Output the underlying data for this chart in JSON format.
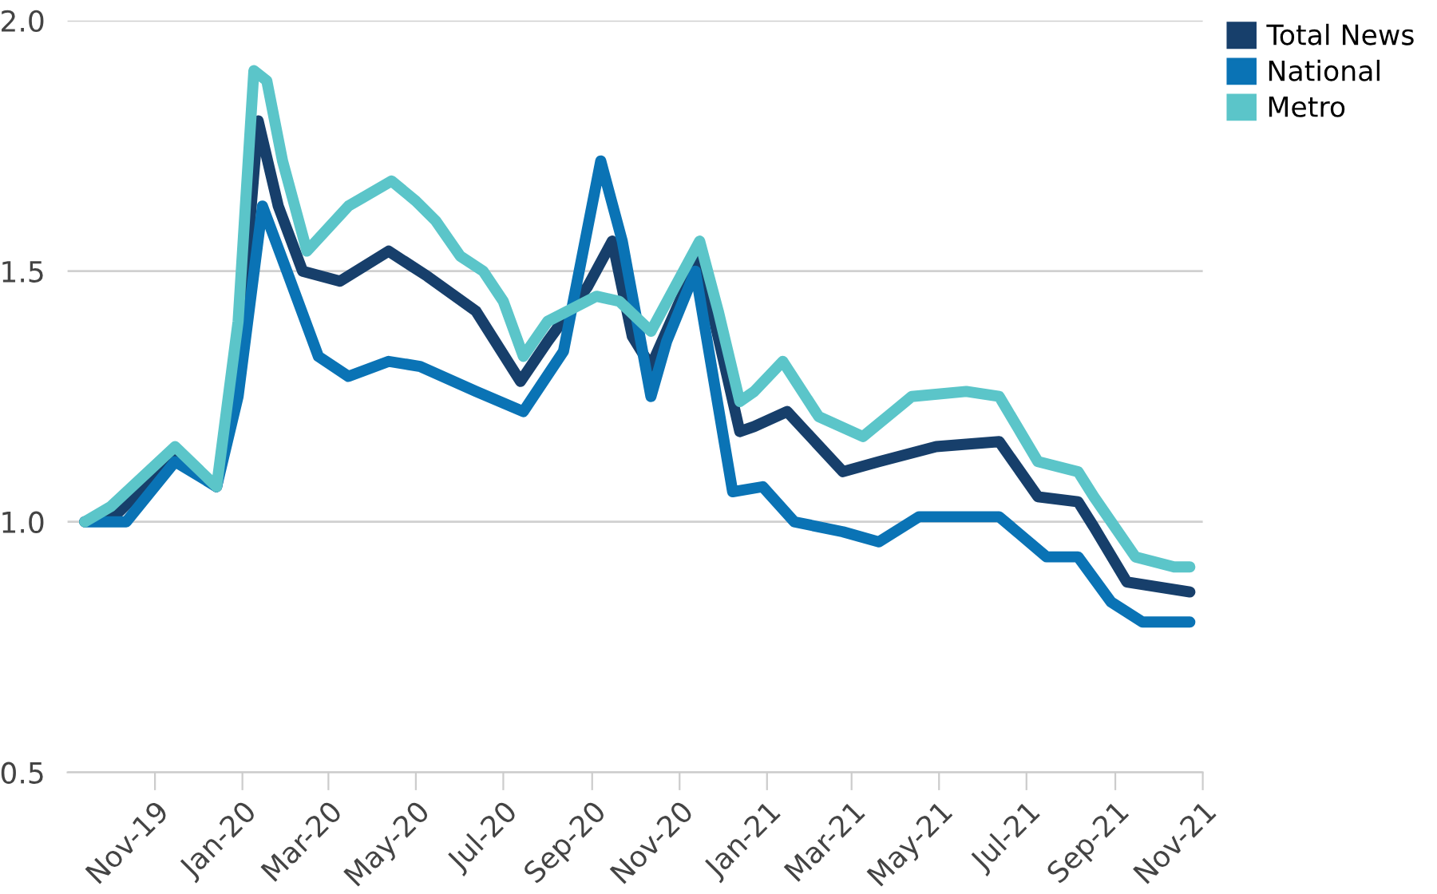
{
  "chart_data": {
    "type": "line",
    "xlim": [
      "2019-09-01",
      "2021-11-01"
    ],
    "xticks": [
      {
        "value": "2019-11-01",
        "label": "Nov-19"
      },
      {
        "value": "2020-01-01",
        "label": "Jan-20"
      },
      {
        "value": "2020-03-01",
        "label": "Mar-20"
      },
      {
        "value": "2020-05-01",
        "label": "May-20"
      },
      {
        "value": "2020-07-01",
        "label": "Jul-20"
      },
      {
        "value": "2020-09-01",
        "label": "Sep-20"
      },
      {
        "value": "2020-11-01",
        "label": "Nov-20"
      },
      {
        "value": "2021-01-01",
        "label": "Jan-21"
      },
      {
        "value": "2021-03-01",
        "label": "Mar-21"
      },
      {
        "value": "2021-05-01",
        "label": "May-21"
      },
      {
        "value": "2021-07-01",
        "label": "Jul-21"
      },
      {
        "value": "2021-09-01",
        "label": "Sep-21"
      },
      {
        "value": "2021-11-01",
        "label": "Nov-21"
      }
    ],
    "ylim": [
      0.5,
      2.0
    ],
    "yticks": [
      {
        "value": 0.5,
        "label": "0.5"
      },
      {
        "value": 1.0,
        "label": "1.0"
      },
      {
        "value": 1.5,
        "label": "1.5"
      },
      {
        "value": 2.0,
        "label": "2.0"
      }
    ],
    "grid": "y",
    "legend": "top right",
    "line_style": "solid",
    "marker": "none",
    "series": [
      {
        "name": "Total News",
        "color": "#173f6b",
        "x": [
          "2019-09-13",
          "2019-10-07",
          "2019-11-15",
          "2019-12-14",
          "2019-12-29",
          "2020-01-12",
          "2020-01-26",
          "2020-02-12",
          "2020-03-09",
          "2020-04-12",
          "2020-05-09",
          "2020-06-12",
          "2020-07-13",
          "2020-08-01",
          "2020-08-29",
          "2020-09-15",
          "2020-09-29",
          "2020-10-12",
          "2020-10-29",
          "2020-11-15",
          "2020-12-13",
          "2020-12-23",
          "2021-01-15",
          "2021-02-23",
          "2021-03-20",
          "2021-04-29",
          "2021-06-12",
          "2021-07-09",
          "2021-08-06",
          "2021-08-17",
          "2021-09-09",
          "2021-10-23"
        ],
        "values": [
          1.0,
          1.02,
          1.13,
          1.07,
          1.31,
          1.8,
          1.63,
          1.5,
          1.48,
          1.54,
          1.49,
          1.42,
          1.28,
          1.36,
          1.47,
          1.56,
          1.37,
          1.31,
          1.42,
          1.53,
          1.18,
          1.19,
          1.22,
          1.1,
          1.12,
          1.15,
          1.16,
          1.05,
          1.04,
          0.99,
          0.88,
          0.86
        ]
      },
      {
        "name": "National",
        "color": "#0a73b5",
        "x": [
          "2019-09-13",
          "2019-10-12",
          "2019-11-15",
          "2019-12-14",
          "2019-12-29",
          "2020-01-15",
          "2020-02-01",
          "2020-02-23",
          "2020-03-15",
          "2020-04-12",
          "2020-05-04",
          "2020-06-12",
          "2020-07-15",
          "2020-08-12",
          "2020-09-07",
          "2020-09-22",
          "2020-10-12",
          "2020-10-23",
          "2020-11-12",
          "2020-12-08",
          "2020-12-29",
          "2021-01-20",
          "2021-02-23",
          "2021-03-20",
          "2021-04-17",
          "2021-06-12",
          "2021-07-15",
          "2021-08-06",
          "2021-08-29",
          "2021-09-20",
          "2021-10-23"
        ],
        "values": [
          1.0,
          1.0,
          1.12,
          1.07,
          1.25,
          1.63,
          1.5,
          1.33,
          1.29,
          1.32,
          1.31,
          1.26,
          1.22,
          1.34,
          1.72,
          1.56,
          1.25,
          1.36,
          1.5,
          1.06,
          1.07,
          1.0,
          0.98,
          0.96,
          1.01,
          1.01,
          0.93,
          0.93,
          0.84,
          0.8,
          0.8
        ]
      },
      {
        "name": "Metro",
        "color": "#5bc5c9",
        "x": [
          "2019-09-13",
          "2019-10-01",
          "2019-11-15",
          "2019-12-14",
          "2019-12-29",
          "2020-01-09",
          "2020-01-18",
          "2020-01-29",
          "2020-02-15",
          "2020-03-15",
          "2020-04-14",
          "2020-05-01",
          "2020-05-15",
          "2020-06-01",
          "2020-06-17",
          "2020-07-01",
          "2020-07-15",
          "2020-08-01",
          "2020-09-04",
          "2020-09-20",
          "2020-10-12",
          "2020-10-29",
          "2020-11-15",
          "2020-11-28",
          "2020-12-13",
          "2020-12-23",
          "2021-01-12",
          "2021-02-06",
          "2021-03-09",
          "2021-04-12",
          "2021-05-20",
          "2021-06-12",
          "2021-07-09",
          "2021-08-06",
          "2021-08-17",
          "2021-09-15",
          "2021-10-12",
          "2021-10-23"
        ],
        "values": [
          1.0,
          1.03,
          1.15,
          1.07,
          1.4,
          1.9,
          1.88,
          1.72,
          1.54,
          1.63,
          1.68,
          1.64,
          1.6,
          1.53,
          1.5,
          1.44,
          1.33,
          1.4,
          1.45,
          1.44,
          1.38,
          1.47,
          1.56,
          1.42,
          1.24,
          1.26,
          1.32,
          1.21,
          1.17,
          1.25,
          1.26,
          1.25,
          1.12,
          1.1,
          1.05,
          0.93,
          0.91,
          0.91
        ]
      }
    ]
  }
}
